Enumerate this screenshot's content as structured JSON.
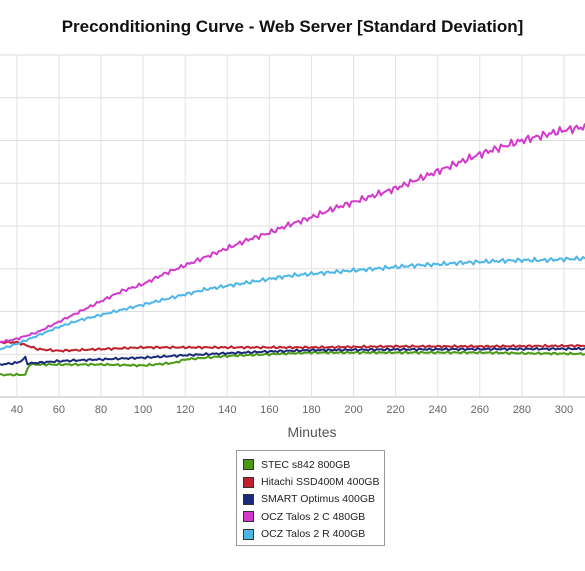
{
  "chart_data": {
    "type": "line",
    "title": "Preconditioning Curve - Web Server [Standard Deviation]",
    "xlabel": "Minutes",
    "ylabel": "",
    "xlim": [
      32,
      310
    ],
    "ylim": [
      0,
      100
    ],
    "x_ticks": [
      40,
      60,
      80,
      100,
      120,
      140,
      160,
      180,
      200,
      220,
      240,
      260,
      280,
      300
    ],
    "y_tick_labels_visible": false,
    "grid": true,
    "legend_position": "bottom-center",
    "series": [
      {
        "name": "STEC s842 800GB",
        "color": "#4a9a14",
        "points": [
          [
            32,
            6.5
          ],
          [
            44,
            6.5
          ],
          [
            45,
            8
          ],
          [
            46,
            9.5
          ],
          [
            60,
            9.5
          ],
          [
            80,
            9.5
          ],
          [
            100,
            9.2
          ],
          [
            115,
            10
          ],
          [
            120,
            11
          ],
          [
            140,
            12
          ],
          [
            160,
            12.5
          ],
          [
            180,
            13
          ],
          [
            200,
            13
          ],
          [
            240,
            13
          ],
          [
            260,
            13
          ],
          [
            280,
            12.8
          ],
          [
            310,
            12.6
          ]
        ]
      },
      {
        "name": "Hitachi SSD400M 400GB",
        "color": "#c0202c",
        "points": [
          [
            32,
            16
          ],
          [
            40,
            16
          ],
          [
            50,
            14
          ],
          [
            60,
            13.5
          ],
          [
            80,
            14
          ],
          [
            100,
            14.5
          ],
          [
            140,
            14.5
          ],
          [
            180,
            14.5
          ],
          [
            220,
            14.8
          ],
          [
            260,
            14.8
          ],
          [
            310,
            15
          ]
        ]
      },
      {
        "name": "SMART Optimus 400GB",
        "color": "#1a2a7a",
        "points": [
          [
            32,
            9.5
          ],
          [
            40,
            10
          ],
          [
            42,
            10.5
          ],
          [
            44,
            11.5
          ],
          [
            45,
            9.8
          ],
          [
            50,
            10
          ],
          [
            60,
            10.5
          ],
          [
            80,
            11
          ],
          [
            100,
            11.5
          ],
          [
            120,
            12.2
          ],
          [
            140,
            12.8
          ],
          [
            160,
            13.3
          ],
          [
            180,
            13.7
          ],
          [
            220,
            13.9
          ],
          [
            260,
            14
          ],
          [
            310,
            14.1
          ]
        ]
      },
      {
        "name": "OCZ Talos 2 C 480GB",
        "color": "#d23acd",
        "points": [
          [
            32,
            16
          ],
          [
            40,
            17
          ],
          [
            50,
            19
          ],
          [
            60,
            22
          ],
          [
            70,
            25
          ],
          [
            80,
            28
          ],
          [
            90,
            31
          ],
          [
            100,
            33
          ],
          [
            110,
            36
          ],
          [
            120,
            38.5
          ],
          [
            130,
            41
          ],
          [
            140,
            43.5
          ],
          [
            150,
            46
          ],
          [
            160,
            48
          ],
          [
            170,
            50.5
          ],
          [
            180,
            52.5
          ],
          [
            190,
            55
          ],
          [
            200,
            57
          ],
          [
            210,
            59
          ],
          [
            220,
            61
          ],
          [
            230,
            63.5
          ],
          [
            240,
            66
          ],
          [
            250,
            68.5
          ],
          [
            260,
            71
          ],
          [
            270,
            73
          ],
          [
            280,
            75
          ],
          [
            290,
            76.5
          ],
          [
            300,
            78
          ],
          [
            310,
            79
          ]
        ]
      },
      {
        "name": "OCZ Talos 2 R 400GB",
        "color": "#4db6e8",
        "points": [
          [
            32,
            14
          ],
          [
            40,
            15.5
          ],
          [
            50,
            18
          ],
          [
            60,
            20.5
          ],
          [
            70,
            22.5
          ],
          [
            80,
            24
          ],
          [
            90,
            25.5
          ],
          [
            100,
            27
          ],
          [
            110,
            28.5
          ],
          [
            120,
            30
          ],
          [
            130,
            31.5
          ],
          [
            140,
            32.5
          ],
          [
            150,
            33.5
          ],
          [
            160,
            34.5
          ],
          [
            170,
            35.5
          ],
          [
            180,
            36
          ],
          [
            190,
            36.5
          ],
          [
            200,
            37
          ],
          [
            210,
            37.5
          ],
          [
            220,
            38
          ],
          [
            230,
            38.5
          ],
          [
            240,
            38.8
          ],
          [
            250,
            39.2
          ],
          [
            260,
            39.5
          ],
          [
            270,
            39.8
          ],
          [
            280,
            40
          ],
          [
            290,
            40
          ],
          [
            300,
            40.3
          ],
          [
            310,
            40.5
          ]
        ]
      }
    ]
  }
}
